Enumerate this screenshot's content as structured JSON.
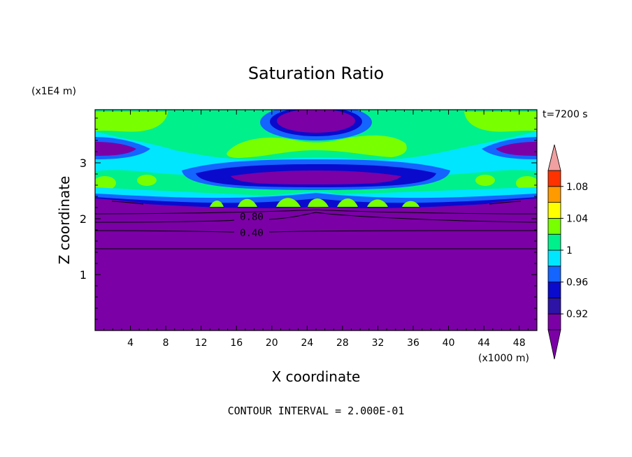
{
  "chart_data": {
    "type": "heatmap",
    "title": "Saturation Ratio",
    "xlabel": "X coordinate",
    "ylabel": "Z coordinate",
    "x_unit_label": "(x1000 m)",
    "y_unit_label": "(x1E4 m)",
    "time_label": "t=7200 s",
    "footer": "CONTOUR INTERVAL = 2.000E-01",
    "xlim": [
      0,
      50
    ],
    "ylim": [
      0,
      3.95
    ],
    "x_ticks": [
      "4",
      "8",
      "12",
      "16",
      "20",
      "24",
      "28",
      "32",
      "36",
      "40",
      "44",
      "48"
    ],
    "x_tick_values": [
      4,
      8,
      12,
      16,
      20,
      24,
      28,
      32,
      36,
      40,
      44,
      48
    ],
    "y_ticks": [
      "1",
      "2",
      "3"
    ],
    "y_tick_values": [
      1,
      2,
      3
    ],
    "contour_labels": [
      {
        "text": "0.80",
        "x": 17.5,
        "y": 2.06
      },
      {
        "text": "0.40",
        "x": 17.5,
        "y": 1.76
      }
    ],
    "colorbar": {
      "labels": [
        {
          "text": "1.08",
          "value": 1.08
        },
        {
          "text": "1.04",
          "value": 1.04
        },
        {
          "text": "1",
          "value": 1.0
        },
        {
          "text": "0.96",
          "value": 0.96
        },
        {
          "text": "0.92",
          "value": 0.92
        }
      ],
      "levels": [
        0.9,
        0.92,
        0.94,
        0.96,
        0.98,
        1.0,
        1.02,
        1.04,
        1.06,
        1.08,
        1.1
      ],
      "colors": [
        "#7b00a6",
        "#2d14a6",
        "#0a0acd",
        "#1464ff",
        "#00e6ff",
        "#00f08c",
        "#78ff00",
        "#ffff00",
        "#ff9b00",
        "#ff3200",
        "#ff8c8c"
      ],
      "under_color": "#7b00a6",
      "over_color": "#f0a0a0"
    },
    "levels_palette": {
      "v0": "#7b00a6",
      "v1": "#2d14a6",
      "v2": "#0a0acd",
      "v3": "#1464ff",
      "v4": "#00e6ff",
      "v5": "#00f08c",
      "v6": "#78ff00"
    }
  }
}
